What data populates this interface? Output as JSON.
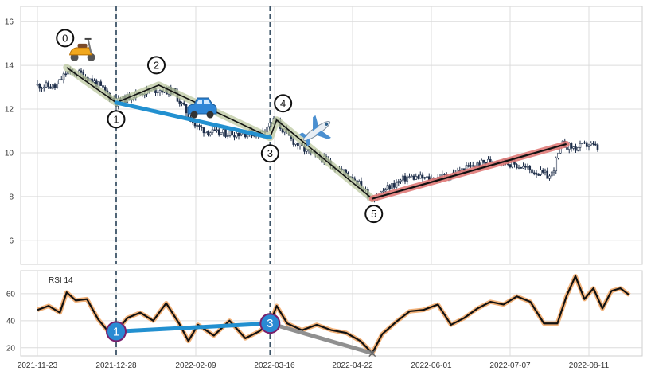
{
  "chart_data": {
    "type": "candlestick",
    "grid": true,
    "x_axis": {
      "tick_labels": [
        "2021-11-23",
        "2021-12-28",
        "2022-02-09",
        "2022-03-16",
        "2022-04-22",
        "2022-06-01",
        "2022-07-07",
        "2022-08-11"
      ]
    },
    "price_panel": {
      "ylim": [
        4.9,
        16.7
      ],
      "y_ticks": [
        6,
        8,
        10,
        12,
        14,
        16
      ],
      "candle_color": "#1f2f4a",
      "close": [
        {
          "date": "2021-11-23",
          "value": 13.1
        },
        {
          "date": "2021-12-01",
          "value": 13.0
        },
        {
          "date": "2021-12-06",
          "value": 13.7
        },
        {
          "date": "2021-12-13",
          "value": 13.6
        },
        {
          "date": "2021-12-20",
          "value": 13.1
        },
        {
          "date": "2021-12-28",
          "value": 12.3
        },
        {
          "date": "2022-01-05",
          "value": 12.6
        },
        {
          "date": "2022-01-12",
          "value": 12.8
        },
        {
          "date": "2022-01-20",
          "value": 12.9
        },
        {
          "date": "2022-01-28",
          "value": 12.8
        },
        {
          "date": "2022-02-09",
          "value": 11.2
        },
        {
          "date": "2022-02-17",
          "value": 10.9
        },
        {
          "date": "2022-02-28",
          "value": 10.9
        },
        {
          "date": "2022-03-09",
          "value": 10.9
        },
        {
          "date": "2022-03-16",
          "value": 11.5
        },
        {
          "date": "2022-03-24",
          "value": 10.6
        },
        {
          "date": "2022-04-01",
          "value": 10.0
        },
        {
          "date": "2022-04-08",
          "value": 9.7
        },
        {
          "date": "2022-04-15",
          "value": 9.3
        },
        {
          "date": "2022-04-22",
          "value": 8.9
        },
        {
          "date": "2022-05-02",
          "value": 7.9
        },
        {
          "date": "2022-05-10",
          "value": 8.4
        },
        {
          "date": "2022-05-20",
          "value": 8.9
        },
        {
          "date": "2022-06-01",
          "value": 8.8
        },
        {
          "date": "2022-06-10",
          "value": 9.0
        },
        {
          "date": "2022-06-20",
          "value": 9.4
        },
        {
          "date": "2022-07-01",
          "value": 9.7
        },
        {
          "date": "2022-07-14",
          "value": 9.3
        },
        {
          "date": "2022-07-25",
          "value": 8.9
        },
        {
          "date": "2022-07-30",
          "value": 10.4
        },
        {
          "date": "2022-08-05",
          "value": 10.2
        },
        {
          "date": "2022-08-11",
          "value": 10.4
        },
        {
          "date": "2022-08-15",
          "value": 10.2
        }
      ],
      "wave_points": [
        {
          "label": "0",
          "date": "2021-12-06",
          "value": 13.9
        },
        {
          "label": "1",
          "date": "2021-12-28",
          "value": 12.3
        },
        {
          "label": "2",
          "date": "2022-01-20",
          "value": 13.1
        },
        {
          "label": "3",
          "date": "2022-03-14",
          "value": 10.7
        },
        {
          "label": "4",
          "date": "2022-03-17",
          "value": 11.5
        },
        {
          "label": "5",
          "date": "2022-05-02",
          "value": 7.9
        }
      ],
      "trend_lines": [
        {
          "from_date": "2021-12-28",
          "from_value": 12.3,
          "to_date": "2022-03-14",
          "to_value": 10.7,
          "color": "#2290d0"
        },
        {
          "from_date": "2022-05-02",
          "from_value": 7.9,
          "to_date": "2022-08-01",
          "to_value": 10.4,
          "color": "#e07a78"
        }
      ],
      "icons": [
        "scooter-icon",
        "car-icon",
        "airplane-icon"
      ]
    },
    "rsi_panel": {
      "label": "RSI 14",
      "ylim": [
        14,
        77
      ],
      "y_ticks": [
        20,
        40,
        60
      ],
      "series": [
        {
          "date": "2021-11-23",
          "value": 48
        },
        {
          "date": "2021-11-28",
          "value": 51
        },
        {
          "date": "2021-12-03",
          "value": 46
        },
        {
          "date": "2021-12-06",
          "value": 61
        },
        {
          "date": "2021-12-10",
          "value": 55
        },
        {
          "date": "2021-12-15",
          "value": 56
        },
        {
          "date": "2021-12-20",
          "value": 41
        },
        {
          "date": "2021-12-24",
          "value": 33
        },
        {
          "date": "2021-12-28",
          "value": 32
        },
        {
          "date": "2022-01-03",
          "value": 42
        },
        {
          "date": "2022-01-10",
          "value": 46
        },
        {
          "date": "2022-01-17",
          "value": 40
        },
        {
          "date": "2022-01-24",
          "value": 53
        },
        {
          "date": "2022-01-31",
          "value": 38
        },
        {
          "date": "2022-02-05",
          "value": 25
        },
        {
          "date": "2022-02-10",
          "value": 37
        },
        {
          "date": "2022-02-17",
          "value": 29
        },
        {
          "date": "2022-02-24",
          "value": 40
        },
        {
          "date": "2022-03-03",
          "value": 27
        },
        {
          "date": "2022-03-09",
          "value": 32
        },
        {
          "date": "2022-03-14",
          "value": 38
        },
        {
          "date": "2022-03-17",
          "value": 51
        },
        {
          "date": "2022-03-22",
          "value": 38
        },
        {
          "date": "2022-03-29",
          "value": 33
        },
        {
          "date": "2022-04-05",
          "value": 37
        },
        {
          "date": "2022-04-12",
          "value": 33
        },
        {
          "date": "2022-04-19",
          "value": 31
        },
        {
          "date": "2022-04-26",
          "value": 25
        },
        {
          "date": "2022-05-02",
          "value": 16
        },
        {
          "date": "2022-05-07",
          "value": 30
        },
        {
          "date": "2022-05-14",
          "value": 39
        },
        {
          "date": "2022-05-21",
          "value": 47
        },
        {
          "date": "2022-05-28",
          "value": 48
        },
        {
          "date": "2022-06-04",
          "value": 52
        },
        {
          "date": "2022-06-10",
          "value": 37
        },
        {
          "date": "2022-06-16",
          "value": 42
        },
        {
          "date": "2022-06-22",
          "value": 49
        },
        {
          "date": "2022-06-28",
          "value": 54
        },
        {
          "date": "2022-07-04",
          "value": 52
        },
        {
          "date": "2022-07-10",
          "value": 58
        },
        {
          "date": "2022-07-16",
          "value": 54
        },
        {
          "date": "2022-07-22",
          "value": 38
        },
        {
          "date": "2022-07-28",
          "value": 38
        },
        {
          "date": "2022-08-01",
          "value": 58
        },
        {
          "date": "2022-08-05",
          "value": 73
        },
        {
          "date": "2022-08-09",
          "value": 56
        },
        {
          "date": "2022-08-13",
          "value": 64
        },
        {
          "date": "2022-08-17",
          "value": 49
        },
        {
          "date": "2022-08-21",
          "value": 62
        },
        {
          "date": "2022-08-25",
          "value": 64
        },
        {
          "date": "2022-08-29",
          "value": 59
        }
      ],
      "divergence_points": [
        {
          "label": "1",
          "date": "2021-12-28",
          "value": 32
        },
        {
          "label": "3",
          "date": "2022-03-14",
          "value": 38
        }
      ],
      "divergence_line_color": "#2290d0",
      "secondary_line": {
        "from_date": "2022-03-14",
        "from_value": 38,
        "to_date": "2022-05-02",
        "to_value": 16,
        "color": "#909090"
      }
    },
    "vertical_markers": [
      "2021-12-28",
      "2022-03-14"
    ]
  }
}
